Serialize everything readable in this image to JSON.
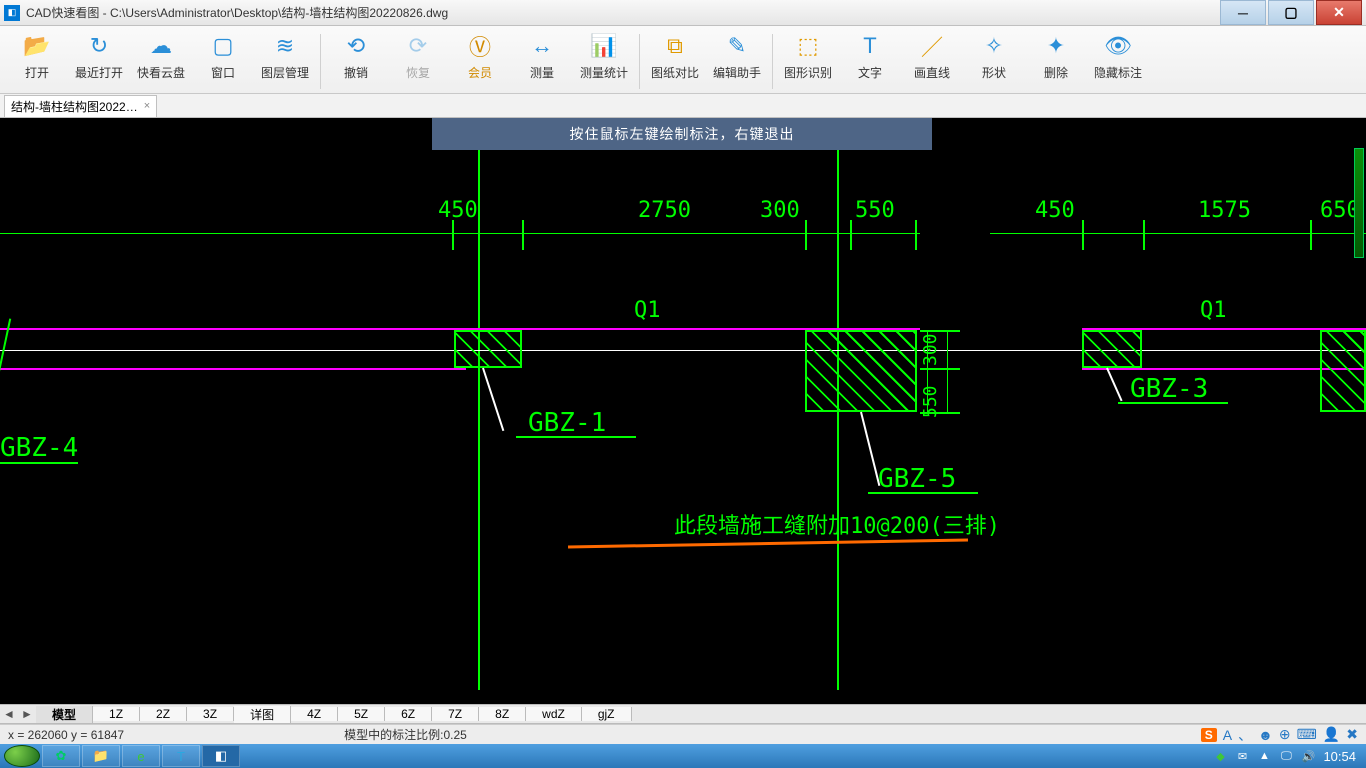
{
  "app": {
    "icon_text": "CAD",
    "title": "CAD快速看图 - C:\\Users\\Administrator\\Desktop\\结构-墙柱结构图20220826.dwg"
  },
  "ribbon": {
    "items": [
      {
        "label": "打开",
        "glyph": "📂",
        "cls": "blue"
      },
      {
        "label": "最近打开",
        "glyph": "↻",
        "cls": "blue"
      },
      {
        "label": "快看云盘",
        "glyph": "☁",
        "cls": "blue"
      },
      {
        "label": "窗口",
        "glyph": "▢",
        "cls": "blue"
      },
      {
        "label": "图层管理",
        "glyph": "≋",
        "cls": "blue"
      }
    ],
    "items2": [
      {
        "label": "撤销",
        "glyph": "⟲",
        "cls": "blue"
      },
      {
        "label": "恢复",
        "glyph": "⟳",
        "cls": "blue",
        "disabled": true
      },
      {
        "label": "会员",
        "glyph": "Ⓥ",
        "cls": "orange highlight"
      },
      {
        "label": "测量",
        "glyph": "↔",
        "cls": "blue"
      },
      {
        "label": "测量统计",
        "glyph": "📊",
        "cls": "orange"
      }
    ],
    "items3": [
      {
        "label": "图纸对比",
        "glyph": "⧉",
        "cls": "orange"
      },
      {
        "label": "编辑助手",
        "glyph": "✎",
        "cls": "blue"
      }
    ],
    "items4": [
      {
        "label": "图形识别",
        "glyph": "⬚",
        "cls": "orange"
      },
      {
        "label": "文字",
        "glyph": "T",
        "cls": "blue"
      },
      {
        "label": "画直线",
        "glyph": "／",
        "cls": "orange"
      },
      {
        "label": "形状",
        "glyph": "✧",
        "cls": "blue"
      },
      {
        "label": "删除",
        "glyph": "✦",
        "cls": "blue"
      },
      {
        "label": "隐藏标注",
        "glyph": "👁",
        "cls": "blue"
      }
    ]
  },
  "file_tab": {
    "name": "结构-墙柱结构图2022…",
    "close": "×"
  },
  "canvas": {
    "hint": "按住鼠标左键绘制标注，右键退出",
    "dims": {
      "d1": "450",
      "d2": "2750",
      "d3": "300",
      "d4": "550",
      "d5": "450",
      "d6": "1575",
      "d7": "650",
      "v1": "300",
      "v2": "550"
    },
    "labels": {
      "gbz4": "GBZ-4",
      "gbz1": "GBZ-1",
      "gbz5": "GBZ-5",
      "gbz3": "GBZ-3",
      "q1a": "Q1",
      "q1b": "Q1",
      "note": "此段墙施工缝附加10@200(三排)"
    }
  },
  "layout_tabs": {
    "tabs": [
      "模型",
      "1Z",
      "2Z",
      "3Z",
      "详图",
      "4Z",
      "5Z",
      "6Z",
      "7Z",
      "8Z",
      "wdZ",
      "gjZ"
    ],
    "active_index": 0
  },
  "statusbar": {
    "coords": "x = 262060 y = 61847",
    "scale": "模型中的标注比例:0.25"
  },
  "taskbar": {
    "clock": "10:54"
  }
}
